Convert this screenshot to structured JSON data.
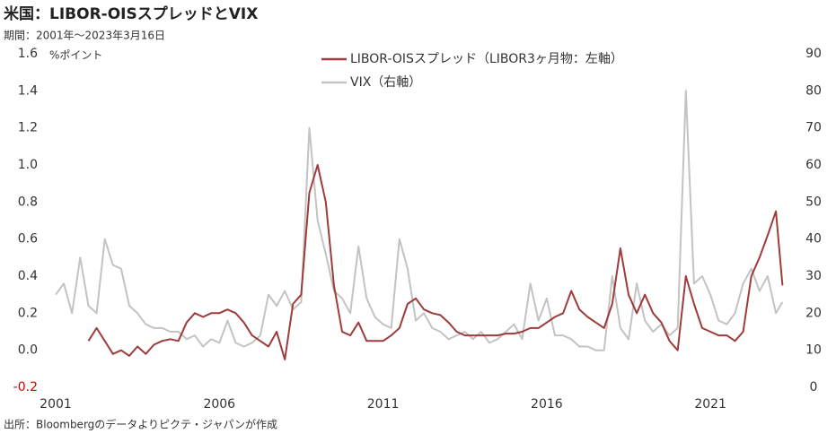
{
  "chart_data": {
    "type": "line",
    "title": "米国：LIBOR-OISスプレッドとVIX",
    "subtitle": "期間：2001年～2023年3月16日",
    "y_axis_label": "%ポイント",
    "source": "出所：Bloombergのデータよりピクテ・ジャパンが作成",
    "x": [
      2001,
      2001.25,
      2001.5,
      2001.75,
      2002,
      2002.25,
      2002.5,
      2002.75,
      2003,
      2003.25,
      2003.5,
      2003.75,
      2004,
      2004.25,
      2004.5,
      2004.75,
      2005,
      2005.25,
      2005.5,
      2005.75,
      2006,
      2006.25,
      2006.5,
      2006.75,
      2007,
      2007.25,
      2007.5,
      2007.75,
      2008,
      2008.25,
      2008.5,
      2008.75,
      2009,
      2009.25,
      2009.5,
      2009.75,
      2010,
      2010.25,
      2010.5,
      2010.75,
      2011,
      2011.25,
      2011.5,
      2011.75,
      2012,
      2012.25,
      2012.5,
      2012.75,
      2013,
      2013.25,
      2013.5,
      2013.75,
      2014,
      2014.25,
      2014.5,
      2014.75,
      2015,
      2015.25,
      2015.5,
      2015.75,
      2016,
      2016.25,
      2016.5,
      2016.75,
      2017,
      2017.25,
      2017.5,
      2017.75,
      2018,
      2018.25,
      2018.5,
      2018.75,
      2019,
      2019.25,
      2019.5,
      2019.75,
      2020,
      2020.25,
      2020.5,
      2020.75,
      2021,
      2021.25,
      2021.5,
      2021.75,
      2022,
      2022.25,
      2022.5,
      2022.75,
      2023,
      2023.2
    ],
    "xlim": [
      2001,
      2023.3
    ],
    "xticks": [
      2001,
      2006,
      2011,
      2016,
      2021
    ],
    "ylim": [
      -0.2,
      1.6
    ],
    "yticks": [
      {
        "value": -0.2,
        "label": "-0.2"
      },
      {
        "value": 0,
        "label": "0.0"
      },
      0.2,
      0.4,
      0.6,
      0.8,
      {
        "value": 1,
        "label": "1.0"
      },
      1.2,
      1.4,
      1.6
    ],
    "y2lim": [
      0,
      90
    ],
    "y2ticks": [
      0,
      10,
      20,
      30,
      40,
      50,
      60,
      70,
      80,
      90
    ],
    "series": [
      {
        "name": "VIX（右軸）",
        "color": "#c3c3c3",
        "axis": "y2",
        "values": [
          25,
          28,
          20,
          35,
          22,
          20,
          40,
          33,
          32,
          22,
          20,
          17,
          16,
          16,
          15,
          15,
          13,
          14,
          11,
          13,
          12,
          18,
          12,
          11,
          12,
          14,
          25,
          22,
          26,
          21,
          23,
          70,
          45,
          36,
          26,
          24,
          20,
          38,
          24,
          19,
          17,
          16,
          40,
          32,
          18,
          20,
          16,
          15,
          13,
          14,
          15,
          13,
          15,
          12,
          13,
          15,
          17,
          13,
          28,
          18,
          24,
          14,
          14,
          13,
          11,
          11,
          10,
          10,
          30,
          16,
          13,
          28,
          18,
          15,
          17,
          14,
          16,
          80,
          28,
          30,
          25,
          18,
          17,
          20,
          28,
          32,
          26,
          30,
          20,
          23
        ]
      },
      {
        "name": "LIBOR-OISスプレッド（LIBOR3ヶ月物：左軸）",
        "color": "#9e3b3b",
        "values": [
          null,
          null,
          null,
          null,
          0.05,
          0.12,
          0.05,
          -0.02,
          0.0,
          -0.03,
          0.02,
          -0.02,
          0.03,
          0.05,
          0.06,
          0.05,
          0.15,
          0.2,
          0.18,
          0.2,
          0.2,
          0.22,
          0.2,
          0.15,
          0.08,
          0.05,
          0.02,
          0.1,
          -0.05,
          0.25,
          0.3,
          0.85,
          1.0,
          0.8,
          0.35,
          0.1,
          0.08,
          0.15,
          0.05,
          0.05,
          0.05,
          0.08,
          0.12,
          0.25,
          0.28,
          0.22,
          0.2,
          0.19,
          0.15,
          0.1,
          0.08,
          0.08,
          0.08,
          0.08,
          0.08,
          0.09,
          0.09,
          0.1,
          0.12,
          0.12,
          0.15,
          0.18,
          0.2,
          0.32,
          0.22,
          0.18,
          0.15,
          0.12,
          0.25,
          0.55,
          0.3,
          0.2,
          0.3,
          0.2,
          0.15,
          0.05,
          0.0,
          0.4,
          0.25,
          0.12,
          0.1,
          0.08,
          0.08,
          0.05,
          0.1,
          0.4,
          0.5,
          0.62,
          0.75,
          0.35
        ]
      }
    ]
  }
}
